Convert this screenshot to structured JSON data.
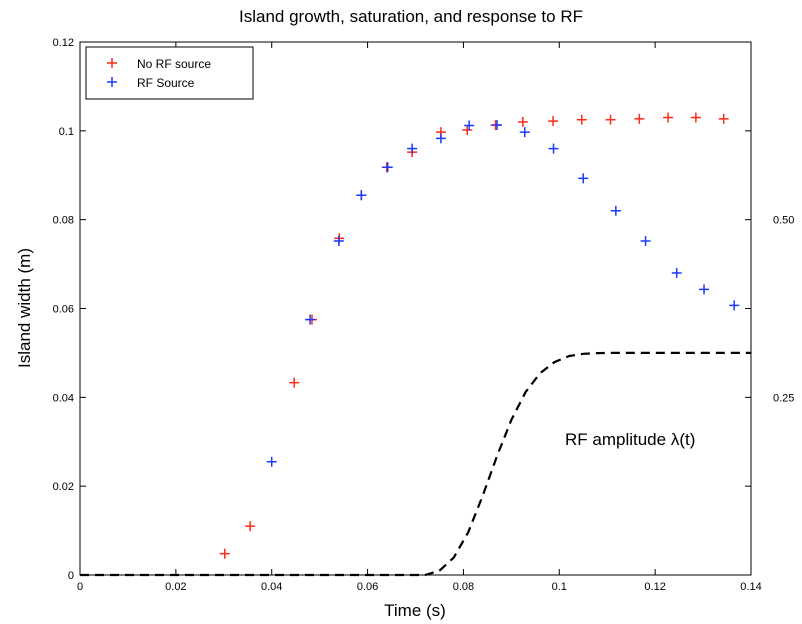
{
  "chart_data": {
    "type": "scatter",
    "title": "Island growth, saturation, and response to RF",
    "xlabel": "Time (s)",
    "ylabel": "Island width (m)",
    "xlim": [
      0,
      0.14
    ],
    "ylim": [
      0,
      0.12
    ],
    "x_ticks": [
      0,
      0.02,
      0.04,
      0.06,
      0.08,
      0.1,
      0.12,
      0.14
    ],
    "x_tick_labels": [
      "0",
      "0.02",
      "0.04",
      "0.06",
      "0.08",
      "0.1",
      "0.12",
      "0.14"
    ],
    "y_ticks": [
      0,
      0.02,
      0.04,
      0.06,
      0.08,
      0.1,
      0.12
    ],
    "y_tick_labels": [
      "0",
      "0.02",
      "0.04",
      "0.06",
      "0.08",
      "0.1",
      "0.12"
    ],
    "right_axis": {
      "ticks": [
        0.25,
        0.5
      ],
      "tick_labels": [
        "0.25",
        "0.50"
      ],
      "range": [
        0,
        0.75
      ]
    },
    "grid": false,
    "legend_placement": "top-left",
    "series": [
      {
        "name": "No RF source",
        "marker": "+",
        "color": "#ff2a1a",
        "x": [
          0.0302,
          0.0355,
          0.0447,
          0.0484,
          0.0541,
          0.0587,
          0.064,
          0.0693,
          0.0753,
          0.0808,
          0.0867,
          0.0924,
          0.0987,
          0.1047,
          0.1107,
          0.1167,
          0.1227,
          0.1285,
          0.1343
        ],
        "y": [
          0.0048,
          0.011,
          0.0433,
          0.0575,
          0.0758,
          0.0855,
          0.0918,
          0.0952,
          0.0997,
          0.1002,
          0.1013,
          0.102,
          0.1022,
          0.1025,
          0.1025,
          0.1027,
          0.103,
          0.103,
          0.1027
        ]
      },
      {
        "name": "RF Source",
        "marker": "+",
        "color": "#1a3aff",
        "x": [
          0.04,
          0.048,
          0.054,
          0.0587,
          0.0642,
          0.0693,
          0.0753,
          0.0812,
          0.087,
          0.0928,
          0.0988,
          0.105,
          0.1118,
          0.118,
          0.1245,
          0.1302,
          0.1365
        ],
        "y": [
          0.0255,
          0.0575,
          0.0752,
          0.0855,
          0.0918,
          0.096,
          0.0983,
          0.1012,
          0.1013,
          0.0997,
          0.096,
          0.0893,
          0.082,
          0.0752,
          0.068,
          0.0643,
          0.0607
        ]
      }
    ],
    "rf_amplitude_curve": {
      "label": "RF amplitude λ(t)",
      "style": "dashed",
      "color": "#000000",
      "x": [
        0,
        0.072,
        0.075,
        0.078,
        0.081,
        0.084,
        0.087,
        0.09,
        0.093,
        0.096,
        0.099,
        0.102,
        0.105,
        0.108,
        0.111,
        0.115,
        0.14
      ],
      "y": [
        0,
        0,
        0.00097,
        0.00395,
        0.00961,
        0.01778,
        0.02678,
        0.03494,
        0.04122,
        0.04543,
        0.04794,
        0.04928,
        0.0498,
        0.04996,
        0.05,
        0.05,
        0.05
      ]
    }
  }
}
